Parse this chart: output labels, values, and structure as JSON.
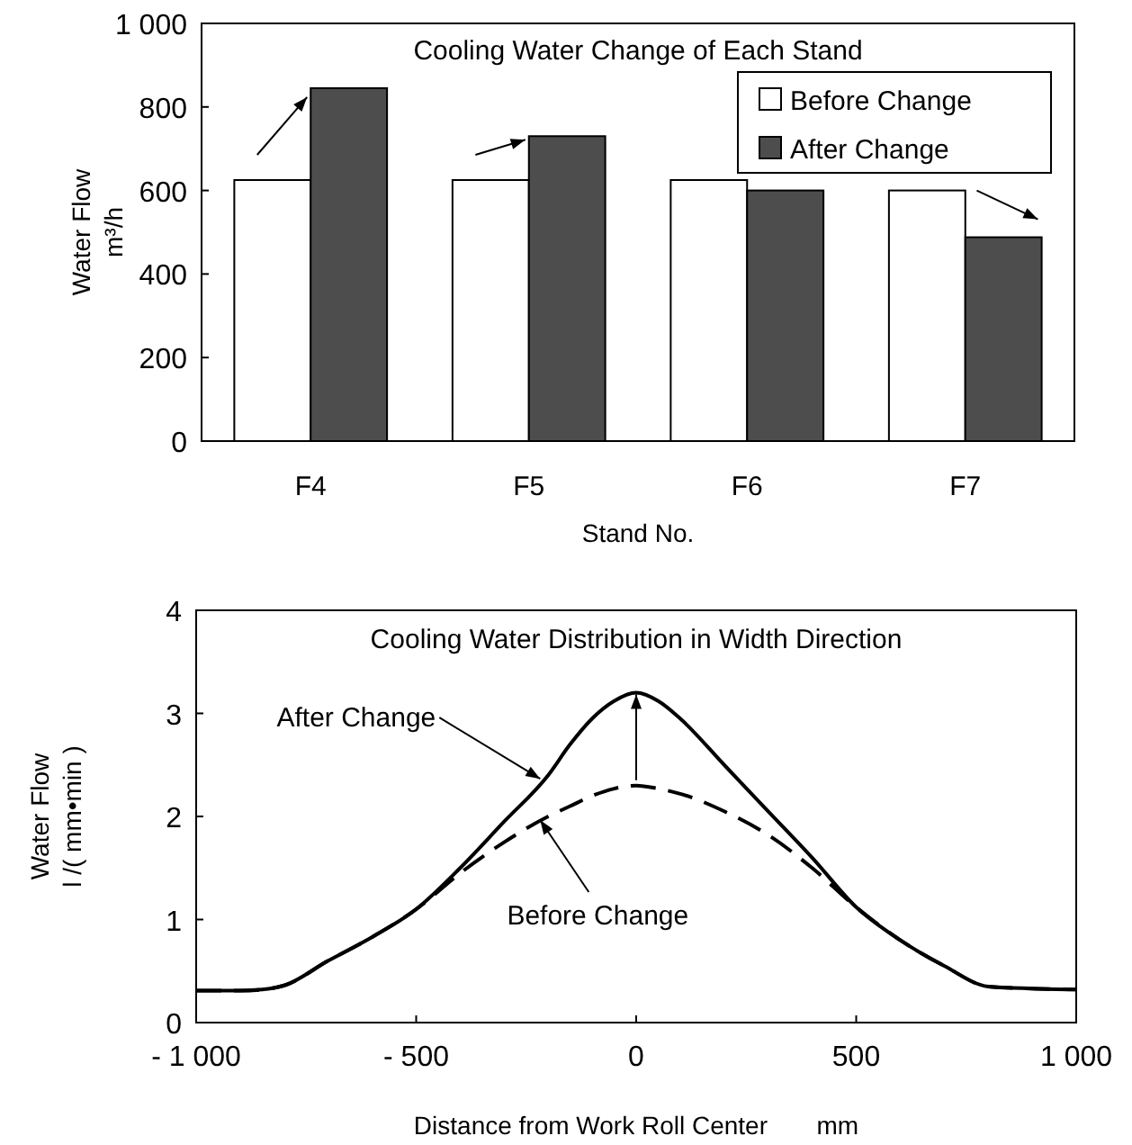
{
  "chart_data": [
    {
      "type": "bar",
      "title": "Cooling Water Change of Each Stand",
      "xlabel": "Stand No.",
      "ylabel": "Water Flow\nm³/h",
      "categories": [
        "F4",
        "F5",
        "F6",
        "F7"
      ],
      "series": [
        {
          "name": "Before Change",
          "color": "#ffffff",
          "values": [
            625,
            625,
            625,
            600
          ]
        },
        {
          "name": "After Change",
          "color": "#4d4d4d",
          "values": [
            845,
            730,
            600,
            488
          ]
        }
      ],
      "ylim": [
        0,
        1000
      ],
      "yticks": [
        0,
        200,
        400,
        600,
        800,
        {
          "value": 1000,
          "label": "1 000"
        }
      ],
      "legend": "top right"
    },
    {
      "type": "line",
      "title": "Cooling Water Distribution in Width Direction",
      "xlabel": "Distance from Work Roll Center       mm",
      "ylabel": "Water Flow\nl /( mm•min )",
      "x": [
        -1000,
        -900,
        -850,
        -800,
        -700,
        -600,
        -500,
        -400,
        -300,
        -200,
        -150,
        -100,
        -50,
        0,
        50,
        100,
        200,
        300,
        400,
        500,
        600,
        700,
        800,
        900,
        1000
      ],
      "series": [
        {
          "color": "#000000",
          "line_style": "solid",
          "values": [
            0.31,
            0.31,
            0.32,
            0.36,
            0.6,
            0.83,
            1.1,
            1.5,
            1.95,
            2.4,
            2.7,
            2.95,
            3.12,
            3.2,
            3.12,
            2.95,
            2.5,
            2.05,
            1.6,
            1.12,
            0.8,
            0.55,
            0.35,
            0.33,
            0.32
          ]
        },
        {
          "color": "#000000",
          "line_style": "dashed",
          "values": [
            0.31,
            0.31,
            0.32,
            0.36,
            0.6,
            0.83,
            1.1,
            1.45,
            1.75,
            2.0,
            2.1,
            2.2,
            2.27,
            2.3,
            2.27,
            2.22,
            2.05,
            1.82,
            1.5,
            1.12,
            0.8,
            0.55,
            0.35,
            0.33,
            0.32
          ]
        }
      ],
      "xlim": [
        -1000,
        1000
      ],
      "xticks": [
        {
          "value": -1000,
          "label": "- 1 000"
        },
        {
          "value": -500,
          "label": "- 500"
        },
        0,
        500,
        {
          "value": 1000,
          "label": "1 000"
        }
      ],
      "ylim": [
        0,
        4
      ],
      "yticks": [
        0,
        1,
        2,
        3,
        4
      ],
      "annotations": [
        {
          "text": "After Change",
          "x": -210,
          "y": 2.4
        },
        {
          "text": "Before Change",
          "x": -210,
          "y": 2.0
        }
      ]
    }
  ]
}
